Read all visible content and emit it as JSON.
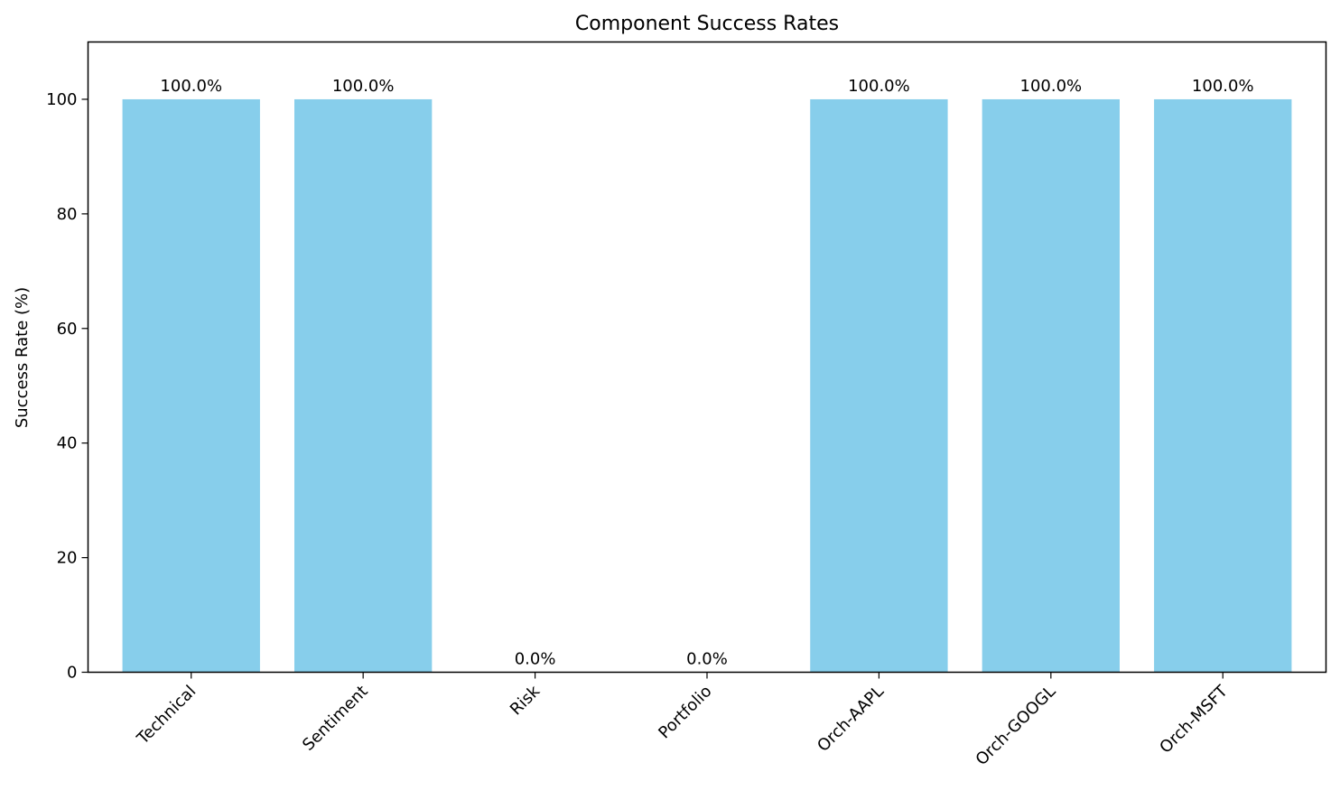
{
  "chart_data": {
    "type": "bar",
    "title": "Component Success Rates",
    "xlabel": "",
    "ylabel": "Success Rate (%)",
    "categories": [
      "Technical",
      "Sentiment",
      "Risk",
      "Portfolio",
      "Orch-AAPL",
      "Orch-GOOGL",
      "Orch-MSFT"
    ],
    "values": [
      100.0,
      100.0,
      0.0,
      0.0,
      100.0,
      100.0,
      100.0
    ],
    "value_labels": [
      "100.0%",
      "100.0%",
      "0.0%",
      "0.0%",
      "100.0%",
      "100.0%",
      "100.0%"
    ],
    "ylim": [
      0,
      110
    ],
    "yticks": [
      0,
      20,
      40,
      60,
      80,
      100
    ],
    "ytick_labels": [
      "0",
      "20",
      "40",
      "60",
      "80",
      "100"
    ],
    "grid": false,
    "colors": {
      "bar": "#87ceeb",
      "axis": "#000000",
      "background": "#ffffff"
    }
  }
}
